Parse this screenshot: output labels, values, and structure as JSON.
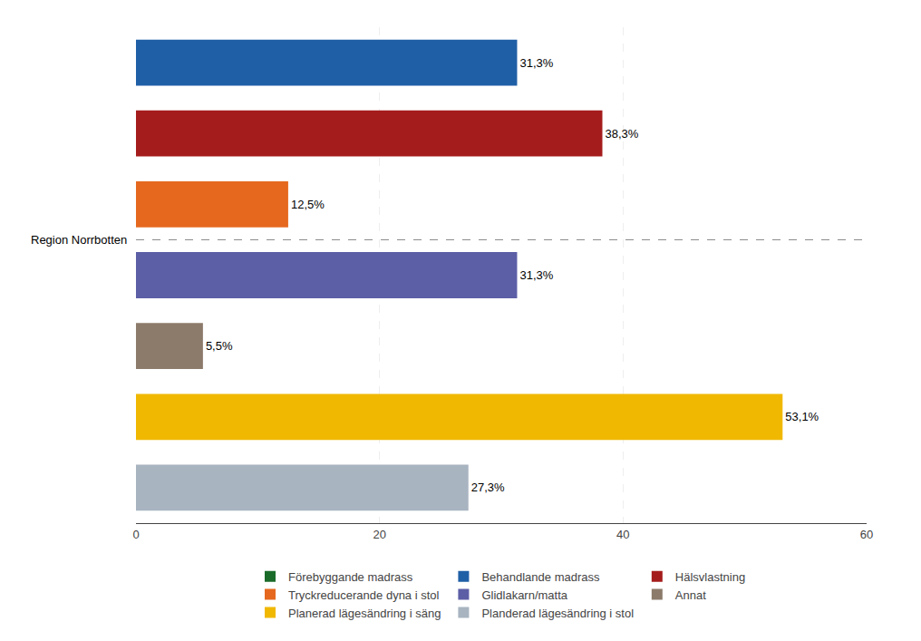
{
  "chart_data": {
    "type": "bar",
    "orientation": "horizontal",
    "categories": [
      null,
      null,
      null,
      null,
      null,
      null,
      null
    ],
    "series": [
      {
        "name": "Förebyggande madrass",
        "color": "#1A6B2A",
        "values": [
          null,
          null,
          null,
          null,
          null,
          null,
          null
        ]
      },
      {
        "name": "Behandlande madrass",
        "color": "#1F5FA6",
        "values": [
          31.3,
          null,
          null,
          null,
          null,
          null,
          null
        ],
        "value_labels": [
          "31,3%",
          null,
          null,
          null,
          null,
          null,
          null
        ]
      },
      {
        "name": "Hälsvlastning",
        "color": "#A51C1C",
        "values": [
          null,
          38.3,
          null,
          null,
          null,
          null,
          null
        ],
        "value_labels": [
          null,
          "38,3%",
          null,
          null,
          null,
          null,
          null
        ]
      },
      {
        "name": "Tryckreducerande dyna i stol",
        "color": "#E5681E",
        "values": [
          null,
          null,
          12.5,
          null,
          null,
          null,
          null
        ],
        "value_labels": [
          null,
          null,
          "12,5%",
          null,
          null,
          null,
          null
        ]
      },
      {
        "name": "Glidlakarn/matta",
        "color": "#5C5EA6",
        "values": [
          null,
          null,
          null,
          31.3,
          null,
          null,
          null
        ],
        "value_labels": [
          null,
          null,
          null,
          "31,3%",
          null,
          null,
          null
        ]
      },
      {
        "name": "Annat",
        "color": "#8C7B6B",
        "values": [
          null,
          null,
          null,
          null,
          5.5,
          null,
          null
        ],
        "value_labels": [
          null,
          null,
          null,
          null,
          "5,5%",
          null,
          null
        ]
      },
      {
        "name": "Planerad lägesändring i säng",
        "color": "#F0B800",
        "values": [
          null,
          null,
          null,
          null,
          null,
          53.1,
          null
        ],
        "value_labels": [
          null,
          null,
          null,
          null,
          null,
          "53,1%",
          null
        ]
      },
      {
        "name": "Planderad lägesändring i stol",
        "color": "#A8B4C0",
        "values": [
          null,
          null,
          null,
          null,
          null,
          null,
          27.3
        ],
        "value_labels": [
          null,
          null,
          null,
          null,
          null,
          null,
          "27,3%"
        ]
      }
    ],
    "xlim": [
      0,
      60
    ],
    "xticks": [
      0,
      20,
      40,
      60
    ],
    "grid": true,
    "legend": "bottom",
    "data_labels": true,
    "tick_labels": "x",
    "annotations": [
      {
        "text": "Region Norrbotten",
        "line_style": "dashed",
        "between": [
          2,
          3
        ]
      }
    ]
  }
}
